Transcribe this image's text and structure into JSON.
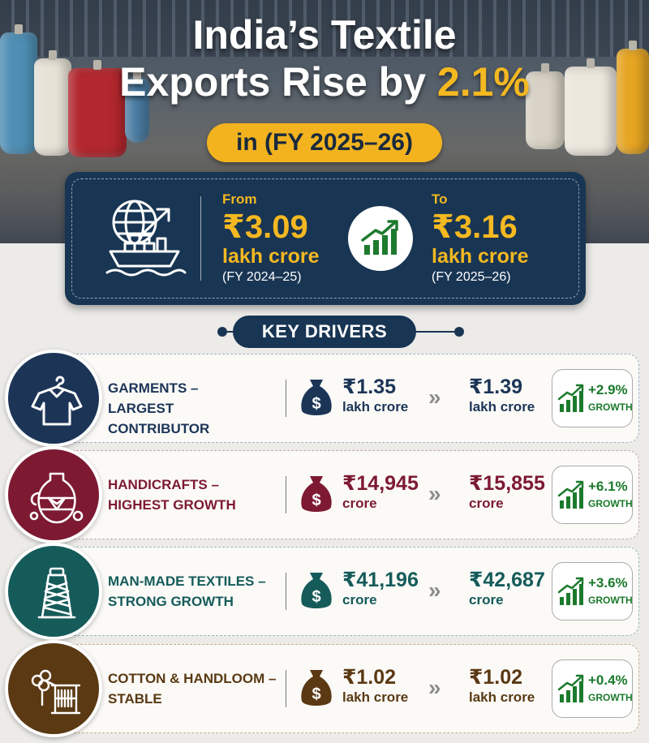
{
  "title": {
    "line1": "India’s Textile",
    "line2_prefix": "Exports Rise by ",
    "line2_accent": "2.1%",
    "period": "in (FY 2025–26)"
  },
  "summary": {
    "from_label": "From",
    "from_amount": "₹3.09",
    "from_unit": "lakh crore",
    "from_fy": "(FY 2024–25)",
    "to_label": "To",
    "to_amount": "₹3.16",
    "to_unit": "lakh crore",
    "to_fy": "(FY 2025–26)"
  },
  "key_drivers_title": "KEY DRIVERS",
  "drivers": [
    {
      "line1": "GARMENTS –",
      "line2": "LARGEST CONTRIBUTOR",
      "from_value": "₹1.35",
      "from_unit": "lakh crore",
      "to_value": "₹1.39",
      "to_unit": "lakh crore",
      "growth": "+2.9%",
      "growth_word": "GROWTH",
      "color": "#1c3557",
      "icon": "shirt-icon"
    },
    {
      "line1": "HANDICRAFTS –",
      "line2": "HIGHEST GROWTH",
      "from_value": "₹14,945",
      "from_unit": "crore",
      "to_value": "₹15,855",
      "to_unit": "crore",
      "growth": "+6.1%",
      "growth_word": "GROWTH",
      "color": "#7d1a32",
      "icon": "vase-icon"
    },
    {
      "line1": "MAN-MADE TEXTILES –",
      "line2": "STRONG GROWTH",
      "from_value": "₹41,196",
      "from_unit": "crore",
      "to_value": "₹42,687",
      "to_unit": "crore",
      "growth": "+3.6%",
      "growth_word": "GROWTH",
      "color": "#155b5a",
      "icon": "thread-cone-icon"
    },
    {
      "line1": "COTTON & HANDLOOM –",
      "line2": "STABLE",
      "from_value": "₹1.02",
      "from_unit": "lakh crore",
      "to_value": "₹1.02",
      "to_unit": "lakh crore",
      "growth": "+0.4%",
      "growth_word": "GROWTH",
      "color": "#5a3913",
      "icon": "cotton-loom-icon"
    }
  ]
}
